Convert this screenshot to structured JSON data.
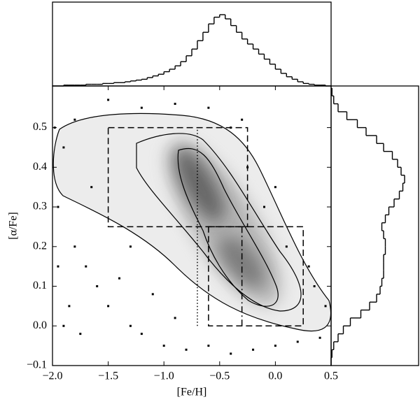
{
  "chart_data": [
    {
      "type": "scatter",
      "xlabel": "[Fe/H]",
      "ylabel": "[α/Fe]",
      "color": "#000000",
      "x": [
        -1.9,
        -1.95,
        -1.8,
        -1.7,
        -1.6,
        -1.85,
        -1.5,
        -1.3,
        -1.2,
        -1.0,
        -0.8,
        -0.6,
        -0.4,
        -0.2,
        0.0,
        0.2,
        0.4,
        0.45,
        0.3,
        0.1,
        -0.1,
        -0.25,
        -0.4,
        -0.6,
        -0.9,
        -1.2,
        -1.5,
        -1.8,
        -1.98,
        -1.9,
        -1.75,
        -1.4,
        -1.1,
        -0.9,
        -0.3,
        0.0,
        0.35,
        -1.65,
        -1.95,
        -1.3
      ],
      "y": [
        0.45,
        0.3,
        0.2,
        0.15,
        0.1,
        0.05,
        0.05,
        0.0,
        -0.02,
        -0.05,
        -0.06,
        -0.05,
        -0.07,
        -0.06,
        -0.05,
        -0.04,
        -0.03,
        0.05,
        0.15,
        0.2,
        0.3,
        0.4,
        0.5,
        0.55,
        0.56,
        0.55,
        0.57,
        0.52,
        0.5,
        0.0,
        -0.02,
        0.12,
        0.08,
        0.02,
        0.52,
        0.35,
        0.1,
        0.35,
        0.15,
        0.2
      ],
      "xlim": [
        -2.0,
        0.5
      ],
      "ylim": [
        -0.1,
        0.605
      ],
      "xticks": [
        {
          "value": -2.0,
          "label": "−2.0"
        },
        {
          "value": -1.5,
          "label": "−1.5"
        },
        {
          "value": -1.0,
          "label": "−1.0"
        },
        {
          "value": -0.5,
          "label": "−0.5"
        },
        {
          "value": 0.0,
          "label": "0.0"
        },
        0.5
      ],
      "yticks": [
        {
          "value": -0.1,
          "label": "−0.1"
        },
        {
          "value": 0.0,
          "label": "0.0"
        },
        0.1,
        0.2,
        0.3,
        0.4,
        0.5
      ],
      "regions": [
        {
          "x": [
            -1.5,
            -0.25
          ],
          "y": [
            0.25,
            0.5
          ],
          "style": "dashed"
        },
        {
          "x": [
            -0.6,
            0.25
          ],
          "y": [
            0.0,
            0.25
          ],
          "style": "dashed"
        },
        {
          "x": [
            -0.7,
            -0.7
          ],
          "y": [
            0.0,
            0.5
          ],
          "style": "dotted"
        },
        {
          "x": [
            -0.3,
            -0.3
          ],
          "y": [
            0.0,
            0.25
          ],
          "style": "dash-dot"
        }
      ]
    },
    {
      "type": "histogram",
      "orientation": "vertical",
      "color": "#000000",
      "bins": [
        -2.0,
        -1.95,
        -1.9,
        -1.85,
        -1.8,
        -1.75,
        -1.7,
        -1.65,
        -1.6,
        -1.55,
        -1.5,
        -1.45,
        -1.4,
        -1.35,
        -1.3,
        -1.25,
        -1.2,
        -1.15,
        -1.1,
        -1.05,
        -1.0,
        -0.95,
        -0.9,
        -0.85,
        -0.8,
        -0.75,
        -0.7,
        -0.65,
        -0.6,
        -0.55,
        -0.5,
        -0.45,
        -0.4,
        -0.35,
        -0.3,
        -0.25,
        -0.2,
        -0.15,
        -0.1,
        -0.05,
        0.0,
        0.05,
        0.1,
        0.15,
        0.2,
        0.25,
        0.3,
        0.35,
        0.4,
        0.45,
        0.5
      ],
      "values": [
        0,
        0,
        1,
        1,
        1,
        1,
        2,
        2,
        2,
        3,
        3,
        4,
        4,
        5,
        6,
        7,
        8,
        10,
        12,
        14,
        17,
        20,
        24,
        29,
        36,
        44,
        54,
        64,
        74,
        82,
        85,
        80,
        72,
        64,
        56,
        50,
        44,
        38,
        32,
        26,
        20,
        15,
        11,
        8,
        5,
        3,
        2,
        1,
        1,
        0
      ],
      "ylim": [
        0,
        100
      ]
    },
    {
      "type": "histogram",
      "orientation": "horizontal",
      "color": "#000000",
      "bins": [
        -0.1,
        -0.08,
        -0.06,
        -0.04,
        -0.02,
        0.0,
        0.02,
        0.04,
        0.06,
        0.08,
        0.1,
        0.12,
        0.14,
        0.16,
        0.18,
        0.2,
        0.22,
        0.24,
        0.26,
        0.28,
        0.3,
        0.32,
        0.34,
        0.36,
        0.38,
        0.4,
        0.42,
        0.44,
        0.46,
        0.48,
        0.5,
        0.52,
        0.54,
        0.56,
        0.58,
        0.6
      ],
      "values": [
        0,
        1,
        3,
        8,
        14,
        22,
        34,
        44,
        52,
        56,
        58,
        60,
        60,
        60,
        62,
        62,
        60,
        58,
        62,
        66,
        72,
        78,
        82,
        84,
        80,
        76,
        70,
        60,
        52,
        40,
        30,
        18,
        8,
        3,
        1
      ],
      "xlim": [
        0,
        100
      ]
    }
  ]
}
